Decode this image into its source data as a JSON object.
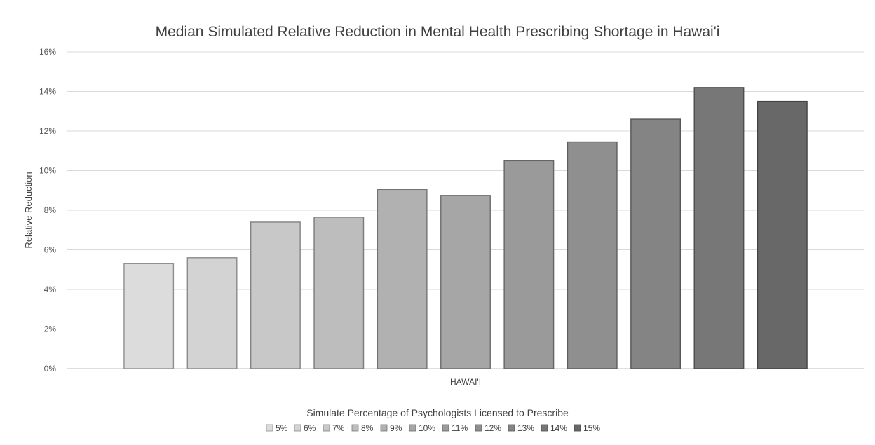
{
  "chart_data": {
    "type": "bar",
    "title": "Median Simulated Relative Reduction in Mental Health Prescribing Shortage in Hawai'i",
    "ylabel": "Relative Reduction",
    "categories": [
      "HAWAI'I"
    ],
    "ylim": [
      0,
      16
    ],
    "yticks": [
      "0%",
      "2%",
      "4%",
      "6%",
      "8%",
      "10%",
      "12%",
      "14%",
      "16%"
    ],
    "grid": true,
    "legend_title": "Simulate Percentage of Psychologists Licensed to Prescribe",
    "legend_position": "bottom",
    "series": [
      {
        "name": "5%",
        "values": [
          5.3
        ],
        "color": "#dcdcdc"
      },
      {
        "name": "6%",
        "values": [
          5.6
        ],
        "color": "#d3d3d3"
      },
      {
        "name": "7%",
        "values": [
          7.4
        ],
        "color": "#c8c8c8"
      },
      {
        "name": "8%",
        "values": [
          7.65
        ],
        "color": "#bdbdbd"
      },
      {
        "name": "9%",
        "values": [
          9.05
        ],
        "color": "#b1b1b1"
      },
      {
        "name": "10%",
        "values": [
          8.75
        ],
        "color": "#a6a6a6"
      },
      {
        "name": "11%",
        "values": [
          10.5
        ],
        "color": "#9a9a9a"
      },
      {
        "name": "12%",
        "values": [
          11.45
        ],
        "color": "#8f8f8f"
      },
      {
        "name": "13%",
        "values": [
          12.6
        ],
        "color": "#848484"
      },
      {
        "name": "14%",
        "values": [
          14.2
        ],
        "color": "#777777"
      },
      {
        "name": "15%",
        "values": [
          13.5
        ],
        "color": "#686868"
      }
    ]
  }
}
